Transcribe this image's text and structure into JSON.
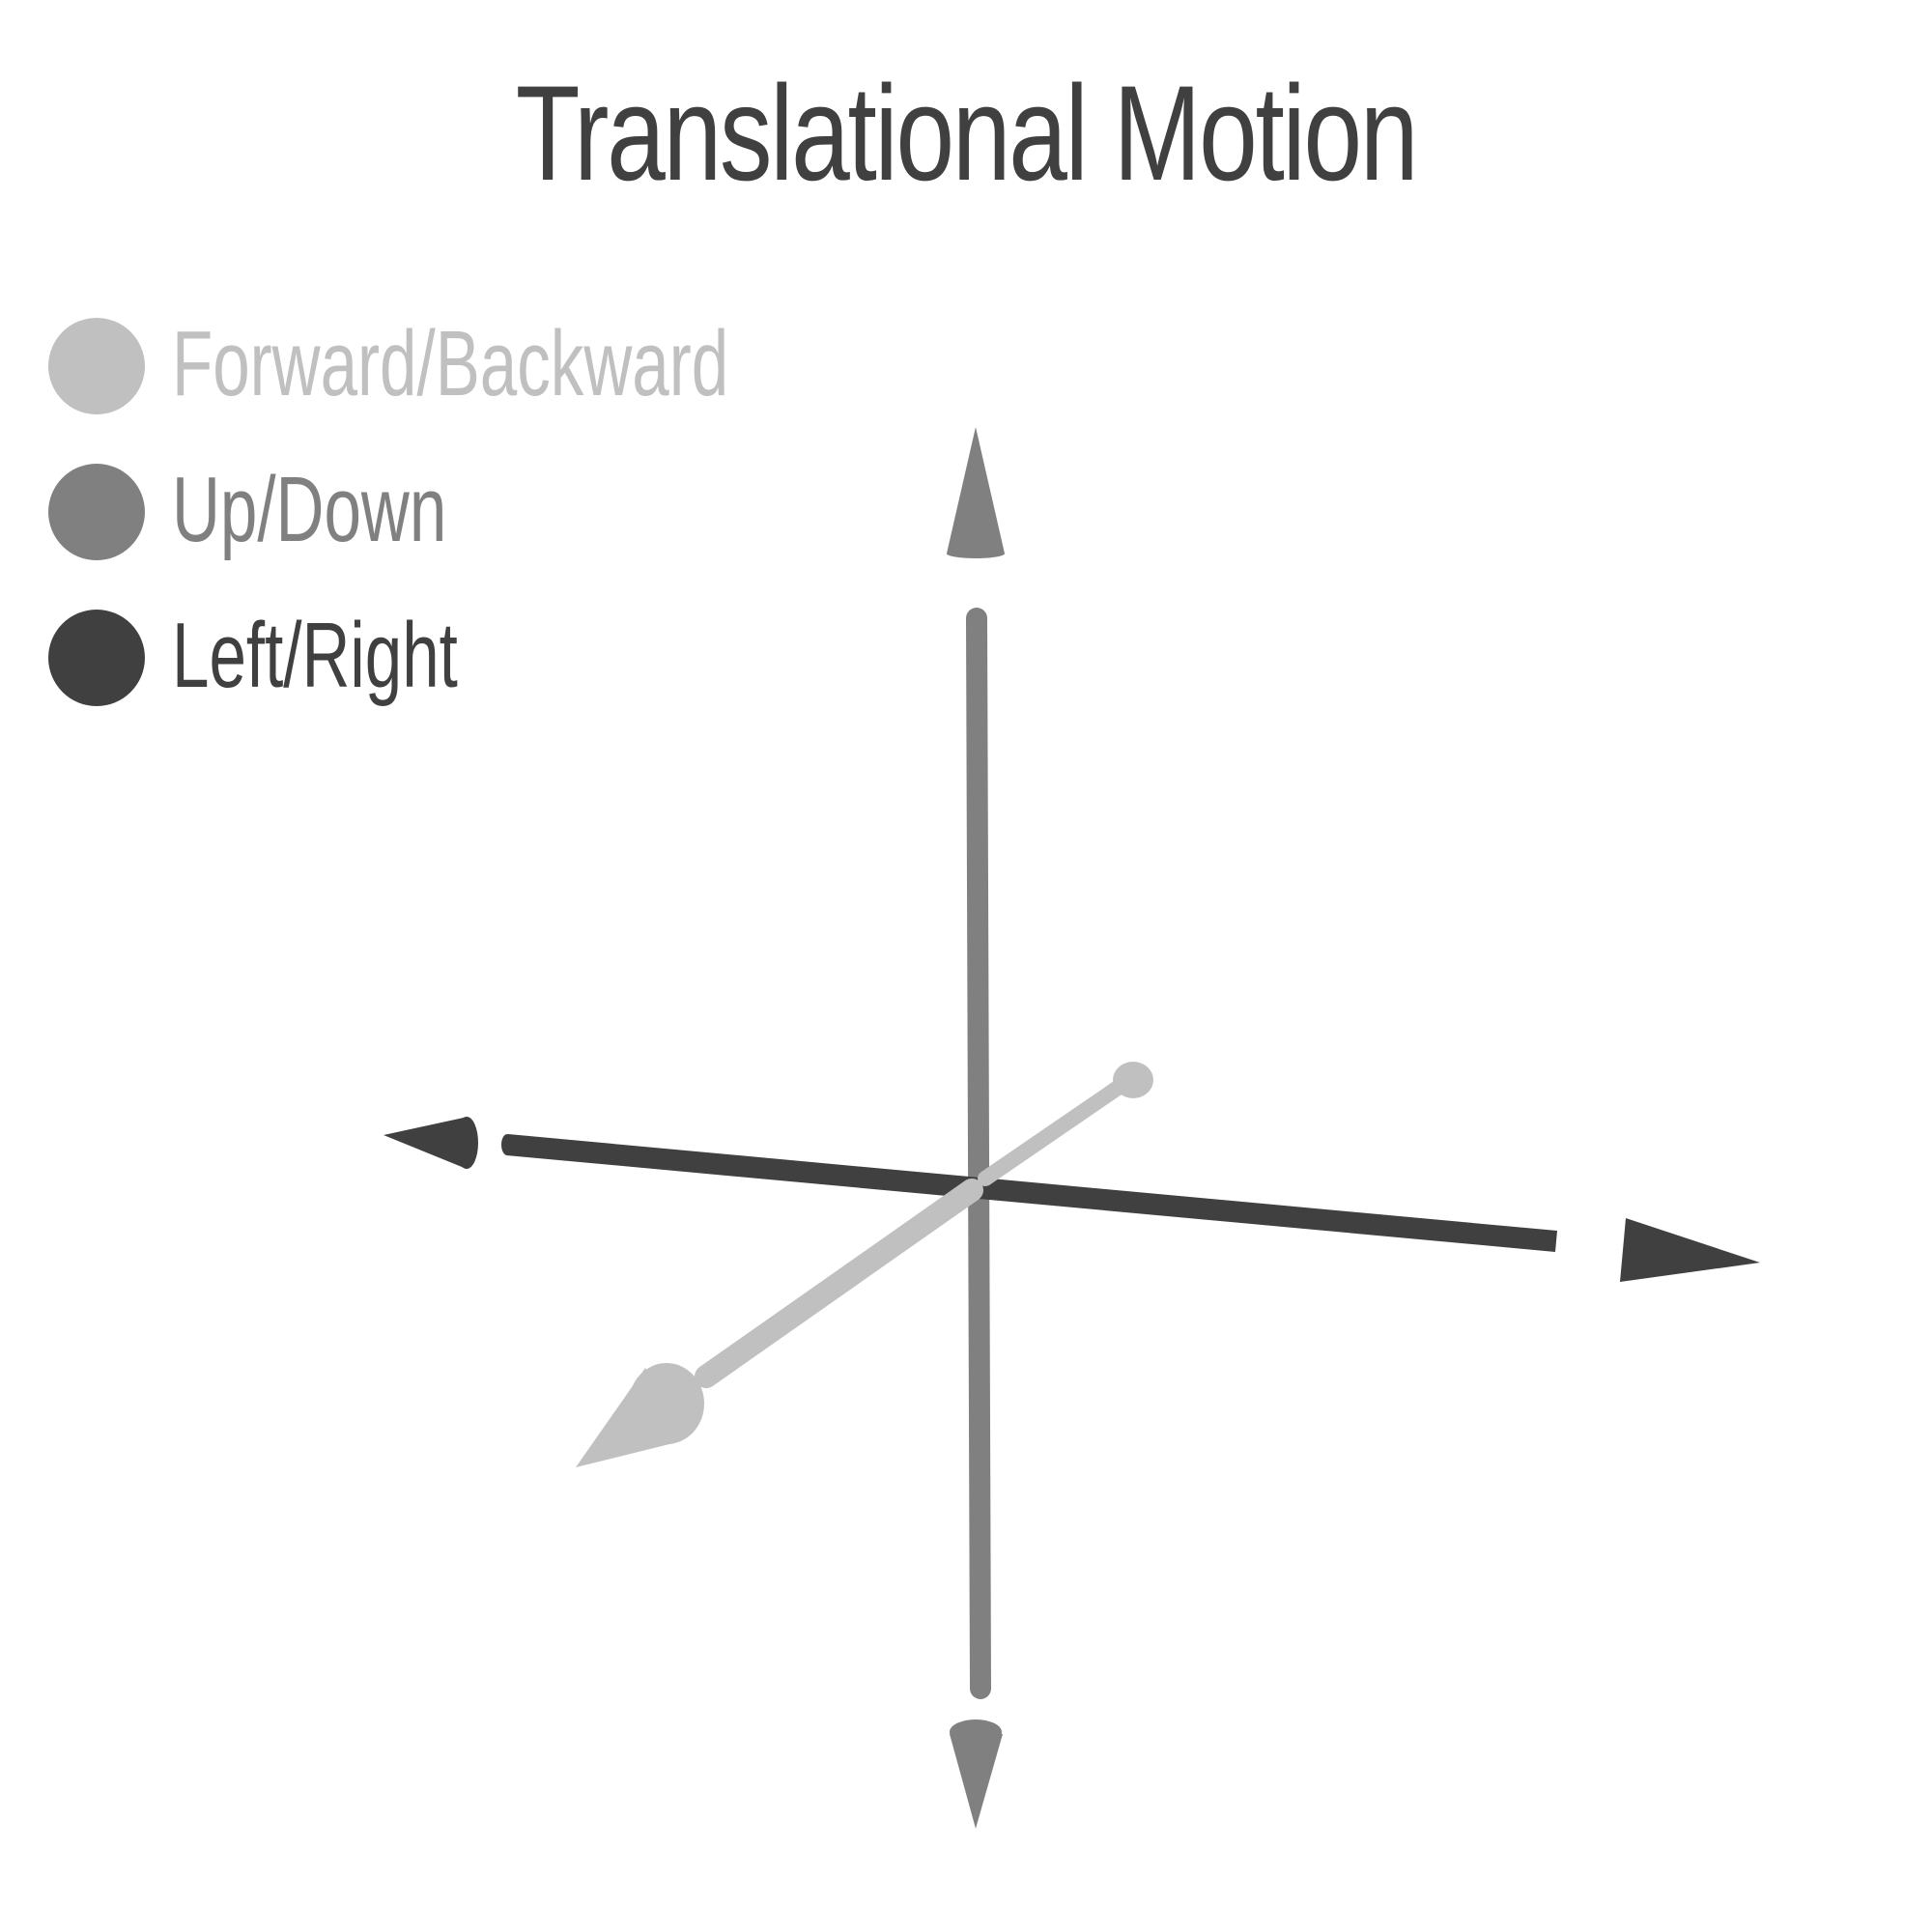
{
  "title": "Translational Motion",
  "legend": [
    {
      "label": "Forward/Backward",
      "color": "#c0c0c0"
    },
    {
      "label": "Up/Down",
      "color": "#808080"
    },
    {
      "label": "Left/Right",
      "color": "#404040"
    }
  ],
  "colors": {
    "forward_backward": "#c0c0c0",
    "up_down": "#808080",
    "left_right": "#404040",
    "background": "#ffffff"
  }
}
